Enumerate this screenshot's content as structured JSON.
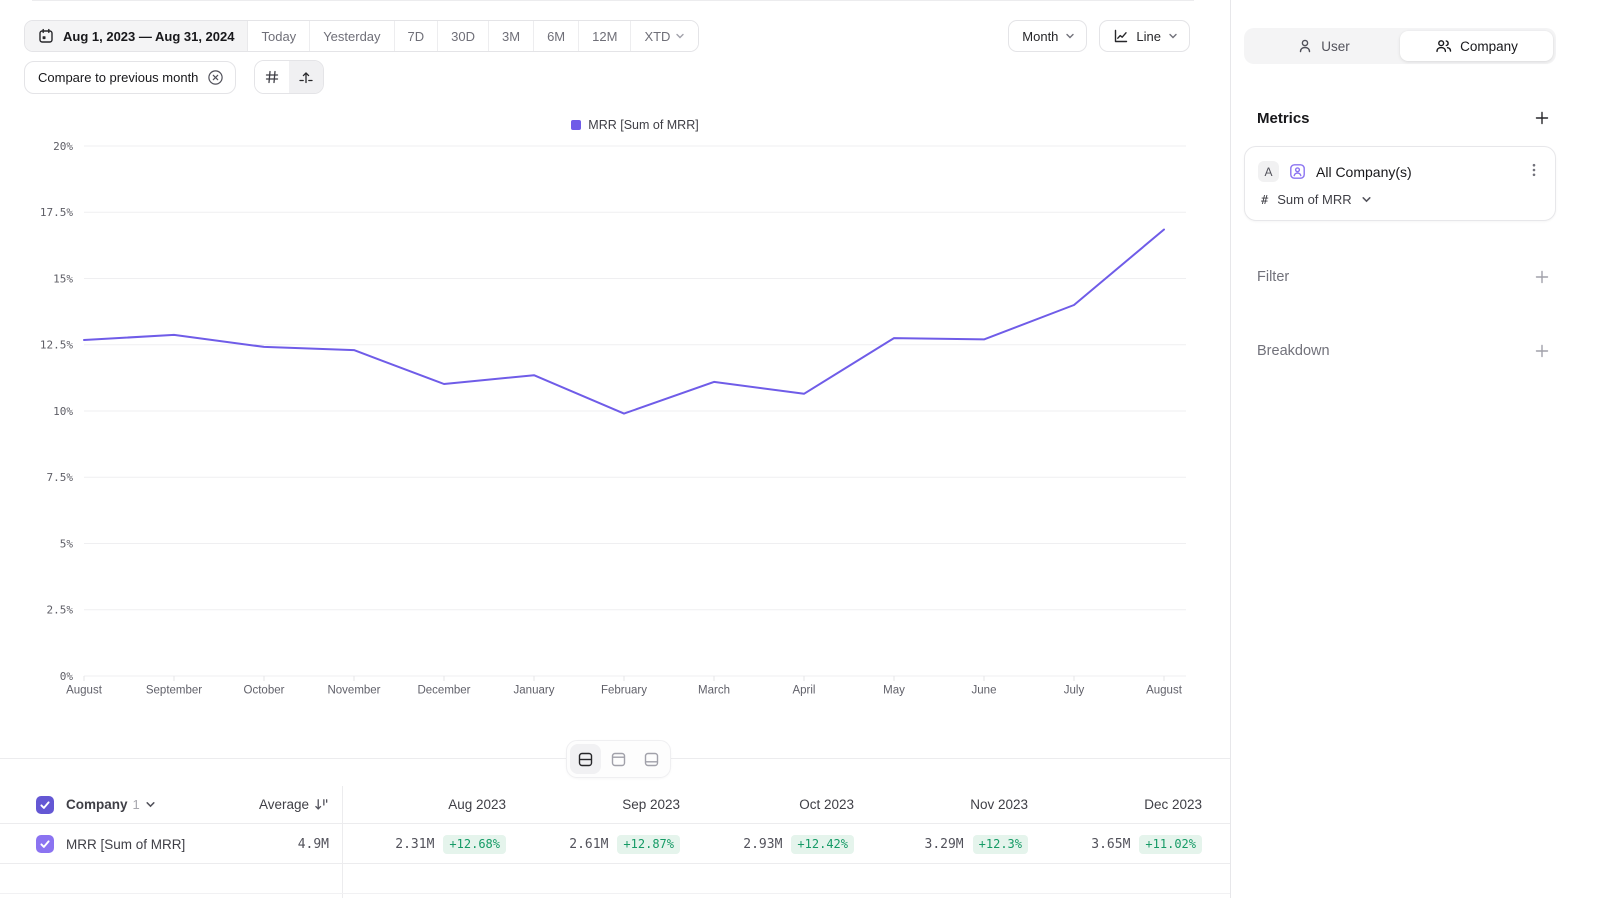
{
  "toolbar": {
    "date_range": "Aug 1, 2023 — Aug 31, 2024",
    "presets": [
      "Today",
      "Yesterday",
      "7D",
      "30D",
      "3M",
      "6M",
      "12M"
    ],
    "xtd_label": "XTD",
    "granularity_label": "Month",
    "chart_type_label": "Line",
    "compare_chip_label": "Compare to previous month"
  },
  "legend": {
    "label": "MRR [Sum of MRR]"
  },
  "chart_data": {
    "type": "line",
    "title": "",
    "xlabel": "",
    "ylabel": "",
    "categories": [
      "August",
      "September",
      "October",
      "November",
      "December",
      "January",
      "February",
      "March",
      "April",
      "May",
      "June",
      "July",
      "August"
    ],
    "series": [
      {
        "name": "MRR [Sum of MRR]",
        "values": [
          12.68,
          12.87,
          12.42,
          12.3,
          11.02,
          11.35,
          9.9,
          11.1,
          10.65,
          12.75,
          12.7,
          14.0,
          16.85
        ]
      }
    ],
    "ylim": [
      0,
      20
    ],
    "yticks": [
      "0%",
      "2.5%",
      "5%",
      "7.5%",
      "10%",
      "12.5%",
      "15%",
      "17.5%",
      "20%"
    ],
    "grid": true,
    "legend_position": "top-center",
    "line_color": "#6F5CE8"
  },
  "table": {
    "group_label": "Company",
    "group_count": "1",
    "average_label": "Average",
    "columns": [
      "Aug 2023",
      "Sep 2023",
      "Oct 2023",
      "Nov 2023",
      "Dec 2023"
    ],
    "rows": [
      {
        "name": "MRR [Sum of MRR]",
        "average": "4.9M",
        "cells": [
          {
            "value": "2.31M",
            "delta": "+12.68%"
          },
          {
            "value": "2.61M",
            "delta": "+12.87%"
          },
          {
            "value": "2.93M",
            "delta": "+12.42%"
          },
          {
            "value": "3.29M",
            "delta": "+12.3%"
          },
          {
            "value": "3.65M",
            "delta": "+11.02%"
          }
        ]
      }
    ]
  },
  "sidebar": {
    "toggle": {
      "user": "User",
      "company": "Company"
    },
    "metrics_title": "Metrics",
    "metric_card": {
      "series_badge": "A",
      "title": "All Company(s)",
      "aggregation_prefix": "#",
      "aggregation": "Sum of MRR"
    },
    "filter_label": "Filter",
    "breakdown_label": "Breakdown"
  },
  "colors": {
    "accent_purple": "#6F5CE8",
    "checkbox_header": "#6457D4",
    "checkbox_row": "#8B73F1",
    "delta_green_text": "#169B66",
    "delta_green_bg": "#E5F4EC",
    "grid_line": "#EFEFF1",
    "border": "#E4E4E7"
  }
}
